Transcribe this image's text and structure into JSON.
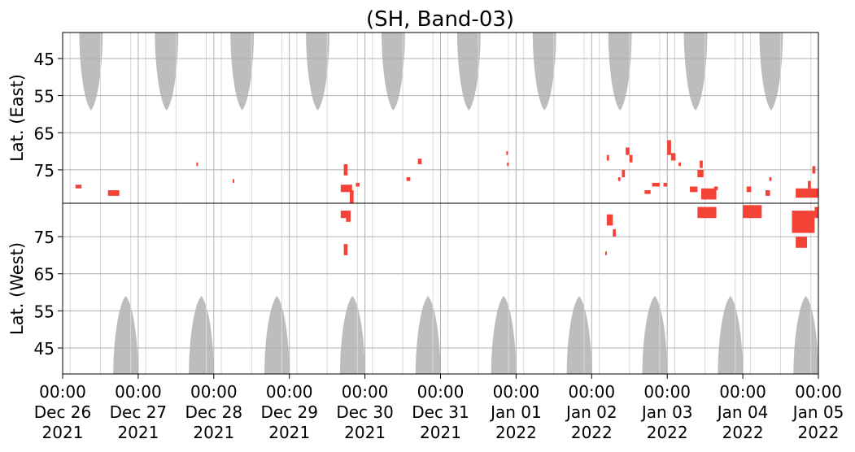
{
  "chart_data": {
    "type": "heatmap",
    "title": "(SH, Band-03)",
    "x_ticks": [
      {
        "time": "00:00",
        "date": "Dec 26",
        "year": "2021"
      },
      {
        "time": "00:00",
        "date": "Dec 27",
        "year": "2021"
      },
      {
        "time": "00:00",
        "date": "Dec 28",
        "year": "2021"
      },
      {
        "time": "00:00",
        "date": "Dec 29",
        "year": "2021"
      },
      {
        "time": "00:00",
        "date": "Dec 30",
        "year": "2021"
      },
      {
        "time": "00:00",
        "date": "Dec 31",
        "year": "2021"
      },
      {
        "time": "00:00",
        "date": "Jan 01",
        "year": "2022"
      },
      {
        "time": "00:00",
        "date": "Jan 02",
        "year": "2022"
      },
      {
        "time": "00:00",
        "date": "Jan 03",
        "year": "2022"
      },
      {
        "time": "00:00",
        "date": "Jan 04",
        "year": "2022"
      },
      {
        "time": "00:00",
        "date": "Jan 05",
        "year": "2022"
      }
    ],
    "xlim": [
      "2021-12-26 00:00",
      "2022-01-05 00:00"
    ],
    "panels": [
      {
        "ylabel": "Lat. (East)",
        "ylim": [
          38,
          84
        ],
        "y_ticks": [
          45,
          55,
          65,
          75
        ],
        "orientation": "top-down",
        "daylight_regions": [
          {
            "start_day": 0.22,
            "end_day": 0.53,
            "min_lat": 59
          },
          {
            "start_day": 1.22,
            "end_day": 1.53,
            "min_lat": 59
          },
          {
            "start_day": 2.22,
            "end_day": 2.53,
            "min_lat": 59
          },
          {
            "start_day": 3.22,
            "end_day": 3.53,
            "min_lat": 59
          },
          {
            "start_day": 4.22,
            "end_day": 4.53,
            "min_lat": 59
          },
          {
            "start_day": 5.22,
            "end_day": 5.53,
            "min_lat": 59
          },
          {
            "start_day": 6.22,
            "end_day": 6.53,
            "min_lat": 59
          },
          {
            "start_day": 7.22,
            "end_day": 7.53,
            "min_lat": 59
          },
          {
            "start_day": 8.22,
            "end_day": 8.53,
            "min_lat": 59
          },
          {
            "start_day": 9.22,
            "end_day": 9.53,
            "min_lat": 59
          }
        ],
        "events": [
          {
            "day": 0.17,
            "lat": 79,
            "w": 0.08,
            "h": 1
          },
          {
            "day": 0.6,
            "lat": 80.5,
            "w": 0.15,
            "h": 1.5
          },
          {
            "day": 1.77,
            "lat": 73,
            "w": 0.02,
            "h": 1
          },
          {
            "day": 2.25,
            "lat": 77.5,
            "w": 0.02,
            "h": 1
          },
          {
            "day": 3.72,
            "lat": 73.5,
            "w": 0.05,
            "h": 3
          },
          {
            "day": 3.68,
            "lat": 79,
            "w": 0.15,
            "h": 2
          },
          {
            "day": 3.8,
            "lat": 80.5,
            "w": 0.05,
            "h": 4
          },
          {
            "day": 3.88,
            "lat": 78.5,
            "w": 0.05,
            "h": 1
          },
          {
            "day": 4.55,
            "lat": 77,
            "w": 0.05,
            "h": 1
          },
          {
            "day": 4.7,
            "lat": 72,
            "w": 0.05,
            "h": 1.5
          },
          {
            "day": 5.87,
            "lat": 70,
            "w": 0.02,
            "h": 1
          },
          {
            "day": 5.88,
            "lat": 73,
            "w": 0.02,
            "h": 1
          },
          {
            "day": 7.2,
            "lat": 71,
            "w": 0.03,
            "h": 1.5
          },
          {
            "day": 7.45,
            "lat": 69,
            "w": 0.05,
            "h": 2
          },
          {
            "day": 7.5,
            "lat": 71,
            "w": 0.04,
            "h": 2
          },
          {
            "day": 7.4,
            "lat": 75,
            "w": 0.04,
            "h": 2
          },
          {
            "day": 7.35,
            "lat": 77,
            "w": 0.03,
            "h": 1
          },
          {
            "day": 7.8,
            "lat": 78.5,
            "w": 0.1,
            "h": 1
          },
          {
            "day": 7.95,
            "lat": 78.5,
            "w": 0.05,
            "h": 1
          },
          {
            "day": 7.7,
            "lat": 80.5,
            "w": 0.08,
            "h": 1
          },
          {
            "day": 8.0,
            "lat": 67,
            "w": 0.05,
            "h": 4
          },
          {
            "day": 8.05,
            "lat": 70.5,
            "w": 0.06,
            "h": 2
          },
          {
            "day": 8.15,
            "lat": 73,
            "w": 0.03,
            "h": 1
          },
          {
            "day": 8.4,
            "lat": 75,
            "w": 0.08,
            "h": 2
          },
          {
            "day": 8.43,
            "lat": 72.5,
            "w": 0.04,
            "h": 2
          },
          {
            "day": 8.3,
            "lat": 79.5,
            "w": 0.1,
            "h": 1.5
          },
          {
            "day": 8.45,
            "lat": 80,
            "w": 0.2,
            "h": 3
          },
          {
            "day": 8.62,
            "lat": 79.5,
            "w": 0.05,
            "h": 1
          },
          {
            "day": 9.35,
            "lat": 77,
            "w": 0.03,
            "h": 1
          },
          {
            "day": 9.05,
            "lat": 79.5,
            "w": 0.06,
            "h": 1.5
          },
          {
            "day": 9.3,
            "lat": 80.5,
            "w": 0.06,
            "h": 1.5
          },
          {
            "day": 9.7,
            "lat": 80,
            "w": 0.3,
            "h": 2.5
          },
          {
            "day": 9.92,
            "lat": 74,
            "w": 0.04,
            "h": 2
          },
          {
            "day": 9.86,
            "lat": 78,
            "w": 0.04,
            "h": 2
          }
        ]
      },
      {
        "ylabel": "Lat. (West)",
        "ylim": [
          38,
          84
        ],
        "y_ticks": [
          45,
          55,
          65,
          75
        ],
        "orientation": "bottom-up",
        "daylight_regions": [
          {
            "start_day": 0.67,
            "end_day": 1.0,
            "min_lat": 59
          },
          {
            "start_day": 1.67,
            "end_day": 2.0,
            "min_lat": 59
          },
          {
            "start_day": 2.67,
            "end_day": 3.0,
            "min_lat": 59
          },
          {
            "start_day": 3.67,
            "end_day": 4.0,
            "min_lat": 59
          },
          {
            "start_day": 4.67,
            "end_day": 5.0,
            "min_lat": 59
          },
          {
            "start_day": 5.67,
            "end_day": 6.0,
            "min_lat": 59
          },
          {
            "start_day": 6.67,
            "end_day": 7.0,
            "min_lat": 59
          },
          {
            "start_day": 7.67,
            "end_day": 8.0,
            "min_lat": 59
          },
          {
            "start_day": 8.67,
            "end_day": 9.0,
            "min_lat": 59
          },
          {
            "start_day": 9.67,
            "end_day": 10.0,
            "min_lat": 59
          }
        ],
        "events": [
          {
            "day": 7.2,
            "lat": 78,
            "w": 0.08,
            "h": 3
          },
          {
            "day": 7.28,
            "lat": 75,
            "w": 0.04,
            "h": 2
          },
          {
            "day": 7.18,
            "lat": 70,
            "w": 0.02,
            "h": 1
          },
          {
            "day": 3.68,
            "lat": 80,
            "w": 0.08,
            "h": 2
          },
          {
            "day": 3.75,
            "lat": 79,
            "w": 0.06,
            "h": 3
          },
          {
            "day": 3.72,
            "lat": 70,
            "w": 0.05,
            "h": 3
          },
          {
            "day": 8.4,
            "lat": 80,
            "w": 0.25,
            "h": 3
          },
          {
            "day": 9.0,
            "lat": 80,
            "w": 0.25,
            "h": 3.5
          },
          {
            "day": 9.95,
            "lat": 80,
            "w": 0.08,
            "h": 3
          },
          {
            "day": 9.65,
            "lat": 76,
            "w": 0.3,
            "h": 6
          },
          {
            "day": 9.7,
            "lat": 72,
            "w": 0.15,
            "h": 3
          }
        ]
      }
    ],
    "colors": {
      "daylight": "#bdbdbd",
      "event": "#f44336",
      "grid": "#b0b0b0",
      "axis": "#000000"
    },
    "grid": true
  }
}
